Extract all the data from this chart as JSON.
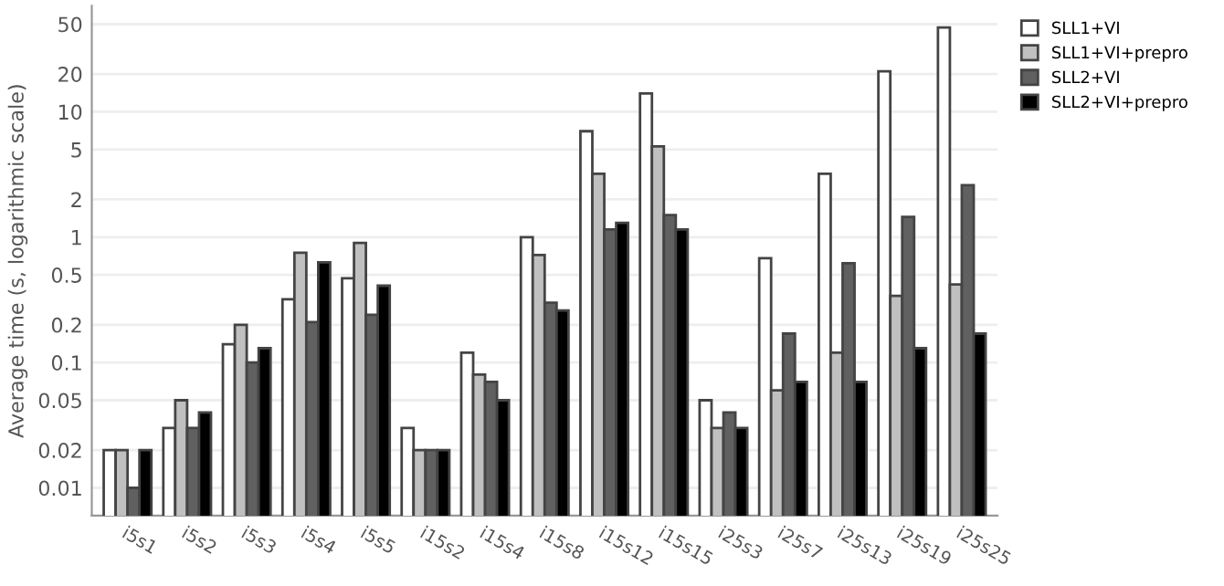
{
  "chart_data": {
    "type": "bar",
    "ylabel": "Average time (s, logarithmic scale)",
    "log": true,
    "categories": [
      "i5s1",
      "i5s2",
      "i5s3",
      "i5s4",
      "i5s5",
      "i15s2",
      "i15s4",
      "i15s8",
      "i15s12",
      "i15s15",
      "i25s3",
      "i25s7",
      "i25s13",
      "i25s19",
      "i25s25"
    ],
    "series": [
      {
        "name": "SLL1+VI",
        "color": "#ffffff",
        "values": [
          0.02,
          0.03,
          0.14,
          0.32,
          0.47,
          0.03,
          0.12,
          1,
          7,
          14,
          0.05,
          0.68,
          3.2,
          21,
          47
        ]
      },
      {
        "name": "SLL1+VI+prepro",
        "color": "#c0c0c0",
        "values": [
          0.02,
          0.05,
          0.2,
          0.75,
          0.9,
          0.02,
          0.08,
          0.72,
          3.2,
          5.3,
          0.03,
          0.06,
          0.12,
          0.34,
          0.42
        ]
      },
      {
        "name": "SLL2+VI",
        "color": "#606060",
        "values": [
          0.01,
          0.03,
          0.1,
          0.21,
          0.24,
          0.02,
          0.07,
          0.3,
          1.15,
          1.5,
          0.04,
          0.17,
          0.62,
          1.45,
          2.6
        ]
      },
      {
        "name": "SLL2+VI+prepro",
        "color": "#000000",
        "values": [
          0.02,
          0.04,
          0.13,
          0.63,
          0.41,
          0.02,
          0.05,
          0.26,
          1.3,
          1.15,
          0.03,
          0.07,
          0.07,
          0.13,
          0.17
        ]
      }
    ],
    "ylim": [
      0.006,
      70
    ],
    "yticks": [
      0.01,
      0.02,
      0.05,
      0.1,
      0.2,
      0.5,
      1,
      2,
      5,
      10,
      20,
      50
    ],
    "grid": "y",
    "legend": "top right"
  }
}
